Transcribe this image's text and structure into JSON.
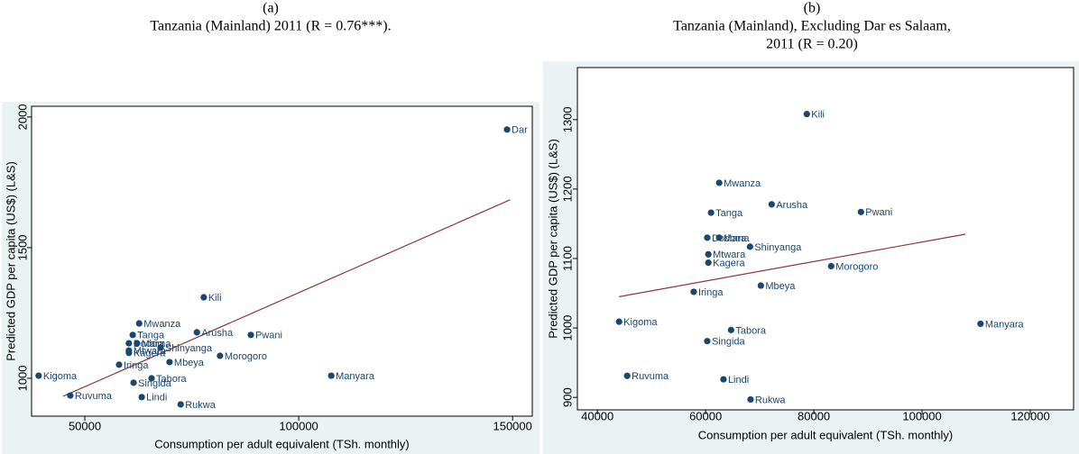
{
  "chart_data": [
    {
      "type": "scatter",
      "panel_label": "(a)",
      "title": [
        "Tanzania (Mainland) 2011 (R = 0.76***)."
      ],
      "xlabel": "Consumption per adult equivalent (TSh. monthly)",
      "ylabel": "Predicted GDP per capita (US$) (L&S)",
      "xlim": [
        37550,
        154600
      ],
      "ylim": [
        855,
        2041
      ],
      "xticks": [
        50000,
        100000,
        150000
      ],
      "yticks": [
        1000,
        1500,
        2000
      ],
      "series": [
        {
          "color": "#1a476f",
          "labels": [
            "Dar",
            "Kili",
            "Mwanza",
            "Arusha",
            "Pwani",
            "Tanga",
            "Dodoma",
            "Mara",
            "Shinyanga",
            "Mtwara",
            "Kagera",
            "Morogoro",
            "Mbeya",
            "Iringa",
            "Kigoma",
            "Manyara",
            "Tabora",
            "Singida",
            "Ruvuma",
            "Lindi",
            "Rukwa"
          ],
          "x": [
            148700,
            77800,
            62700,
            76200,
            88800,
            61200,
            60300,
            62200,
            67700,
            60300,
            60300,
            81600,
            69800,
            58000,
            39200,
            107600,
            65600,
            61400,
            46600,
            63300,
            72400
          ],
          "values": [
            1952,
            1310,
            1210,
            1176,
            1166,
            1166,
            1134,
            1134,
            1117,
            1106,
            1097,
            1086,
            1062,
            1052,
            1010,
            1010,
            1000,
            983,
            934,
            928,
            900
          ]
        }
      ],
      "fit": {
        "color": "#90353b",
        "x": [
          44900,
          149400
        ],
        "values": [
          931,
          1683
        ]
      }
    },
    {
      "type": "scatter",
      "panel_label": "(b)",
      "title": [
        "Tanzania (Mainland), Excluding Dar es Salaam,",
        "2011 (R = 0.20)"
      ],
      "xlabel": "Consumption per adult equivalent (TSh. monthly)",
      "ylabel": "Predicted GDP per capita (US$) (L&S)",
      "xlim": [
        36300,
        128000
      ],
      "ylim": [
        882,
        1375
      ],
      "xticks": [
        40000,
        60000,
        80000,
        100000,
        120000
      ],
      "yticks": [
        900,
        1000,
        1100,
        1200,
        1300
      ],
      "series": [
        {
          "color": "#1a476f",
          "labels": [
            "Kili",
            "Mwanza",
            "Arusha",
            "Pwani",
            "Tanga",
            "Dodoma",
            "Mara",
            "Shinyanga",
            "Mtwara",
            "Morogoro",
            "Kagera",
            "Mbeya",
            "Iringa",
            "Kigoma",
            "Manyara",
            "Tabora",
            "Singida",
            "Ruvuma",
            "Lindi",
            "Rukwa"
          ],
          "x": [
            78700,
            62500,
            72200,
            88700,
            61000,
            60300,
            62500,
            68200,
            60500,
            83200,
            60500,
            70200,
            57800,
            44000,
            110800,
            64700,
            60300,
            45500,
            63300,
            68300
          ],
          "values": [
            1308,
            1209,
            1178,
            1167,
            1166,
            1130,
            1130,
            1117,
            1106,
            1089,
            1094,
            1061,
            1052,
            1009,
            1006,
            997,
            981,
            931,
            926,
            897
          ]
        }
      ],
      "fit": {
        "color": "#90353b",
        "x": [
          44000,
          108000
        ],
        "values": [
          1045,
          1135
        ]
      }
    }
  ]
}
